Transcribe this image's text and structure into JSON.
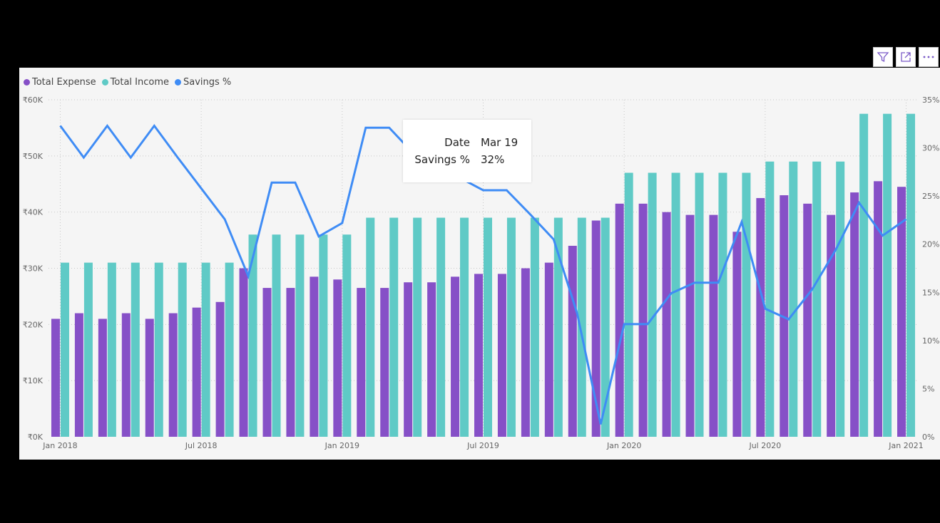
{
  "toolbar": {
    "icons": [
      "filter-icon",
      "focus-mode-icon",
      "more-options-icon"
    ]
  },
  "legend": [
    {
      "label": "Total Expense",
      "color": "#8650c7"
    },
    {
      "label": "Total Income",
      "color": "#5fcac6"
    },
    {
      "label": "Savings %",
      "color": "#3f8cf5"
    }
  ],
  "tooltip": {
    "date_label": "Date",
    "date_value": "Mar 19",
    "savings_label": "Savings %",
    "savings_value": "32%"
  },
  "chart_data": {
    "type": "bar",
    "combo": "clustered-column-line",
    "categories": [
      "Jan 2018",
      "Feb 2018",
      "Mar 2018",
      "Apr 2018",
      "May 2018",
      "Jun 2018",
      "Jul 2018",
      "Aug 2018",
      "Sep 2018",
      "Oct 2018",
      "Nov 2018",
      "Dec 2018",
      "Jan 2019",
      "Feb 2019",
      "Mar 2019",
      "Apr 2019",
      "May 2019",
      "Jun 2019",
      "Jul 2019",
      "Aug 2019",
      "Sep 2019",
      "Oct 2019",
      "Nov 2019",
      "Dec 2019",
      "Jan 2020",
      "Feb 2020",
      "Mar 2020",
      "Apr 2020",
      "May 2020",
      "Jun 2020",
      "Jul 2020",
      "Aug 2020",
      "Sep 2020",
      "Oct 2020",
      "Nov 2020",
      "Dec 2020",
      "Jan 2021"
    ],
    "x_tick_labels": [
      "Jan 2018",
      "Jul 2018",
      "Jan 2019",
      "Jul 2019",
      "Jan 2020",
      "Jul 2020",
      "Jan 2021"
    ],
    "series": [
      {
        "name": "Total Expense",
        "type": "bar",
        "axis": "left",
        "color": "#8650c7",
        "values": [
          21000,
          22000,
          21000,
          22000,
          21000,
          22000,
          23000,
          24000,
          30000,
          26500,
          26500,
          28500,
          28000,
          26500,
          26500,
          27500,
          27500,
          28500,
          29000,
          29000,
          30000,
          31000,
          34000,
          38500,
          41500,
          41500,
          40000,
          39500,
          39500,
          36500,
          42500,
          43000,
          41500,
          39500,
          43500,
          45500,
          44500
        ]
      },
      {
        "name": "Total Income",
        "type": "bar",
        "axis": "left",
        "color": "#5fcac6",
        "values": [
          31000,
          31000,
          31000,
          31000,
          31000,
          31000,
          31000,
          31000,
          36000,
          36000,
          36000,
          36000,
          36000,
          39000,
          39000,
          39000,
          39000,
          39000,
          39000,
          39000,
          39000,
          39000,
          39000,
          39000,
          47000,
          47000,
          47000,
          47000,
          47000,
          47000,
          49000,
          49000,
          49000,
          49000,
          57500,
          57500,
          57500
        ]
      },
      {
        "name": "Savings %",
        "type": "line",
        "axis": "right",
        "color": "#3f8cf5",
        "values": [
          32.3,
          29.0,
          32.3,
          29.0,
          32.3,
          29.0,
          25.8,
          22.6,
          16.7,
          26.4,
          26.4,
          20.8,
          22.2,
          32.1,
          32.1,
          29.5,
          29.5,
          26.9,
          25.6,
          25.6,
          23.1,
          20.5,
          12.8,
          1.3,
          11.7,
          11.7,
          14.9,
          16.0,
          16.0,
          22.3,
          13.3,
          12.2,
          15.3,
          19.4,
          24.3,
          20.9,
          22.6
        ]
      }
    ],
    "ylim_left": [
      0,
      60000
    ],
    "ylim_right": [
      0,
      35
    ],
    "y_left_ticks": [
      {
        "value": 0,
        "label": "₹0K"
      },
      {
        "value": 10000,
        "label": "₹10K"
      },
      {
        "value": 20000,
        "label": "₹20K"
      },
      {
        "value": 30000,
        "label": "₹30K"
      },
      {
        "value": 40000,
        "label": "₹40K"
      },
      {
        "value": 50000,
        "label": "₹50K"
      },
      {
        "value": 60000,
        "label": "₹60K"
      }
    ],
    "y_right_ticks": [
      {
        "value": 0,
        "label": "0%"
      },
      {
        "value": 5,
        "label": "5%"
      },
      {
        "value": 10,
        "label": "10%"
      },
      {
        "value": 15,
        "label": "15%"
      },
      {
        "value": 20,
        "label": "20%"
      },
      {
        "value": 25,
        "label": "25%"
      },
      {
        "value": 30,
        "label": "30%"
      },
      {
        "value": 35,
        "label": "35%"
      }
    ],
    "grid": true,
    "legend_position": "top-left"
  }
}
